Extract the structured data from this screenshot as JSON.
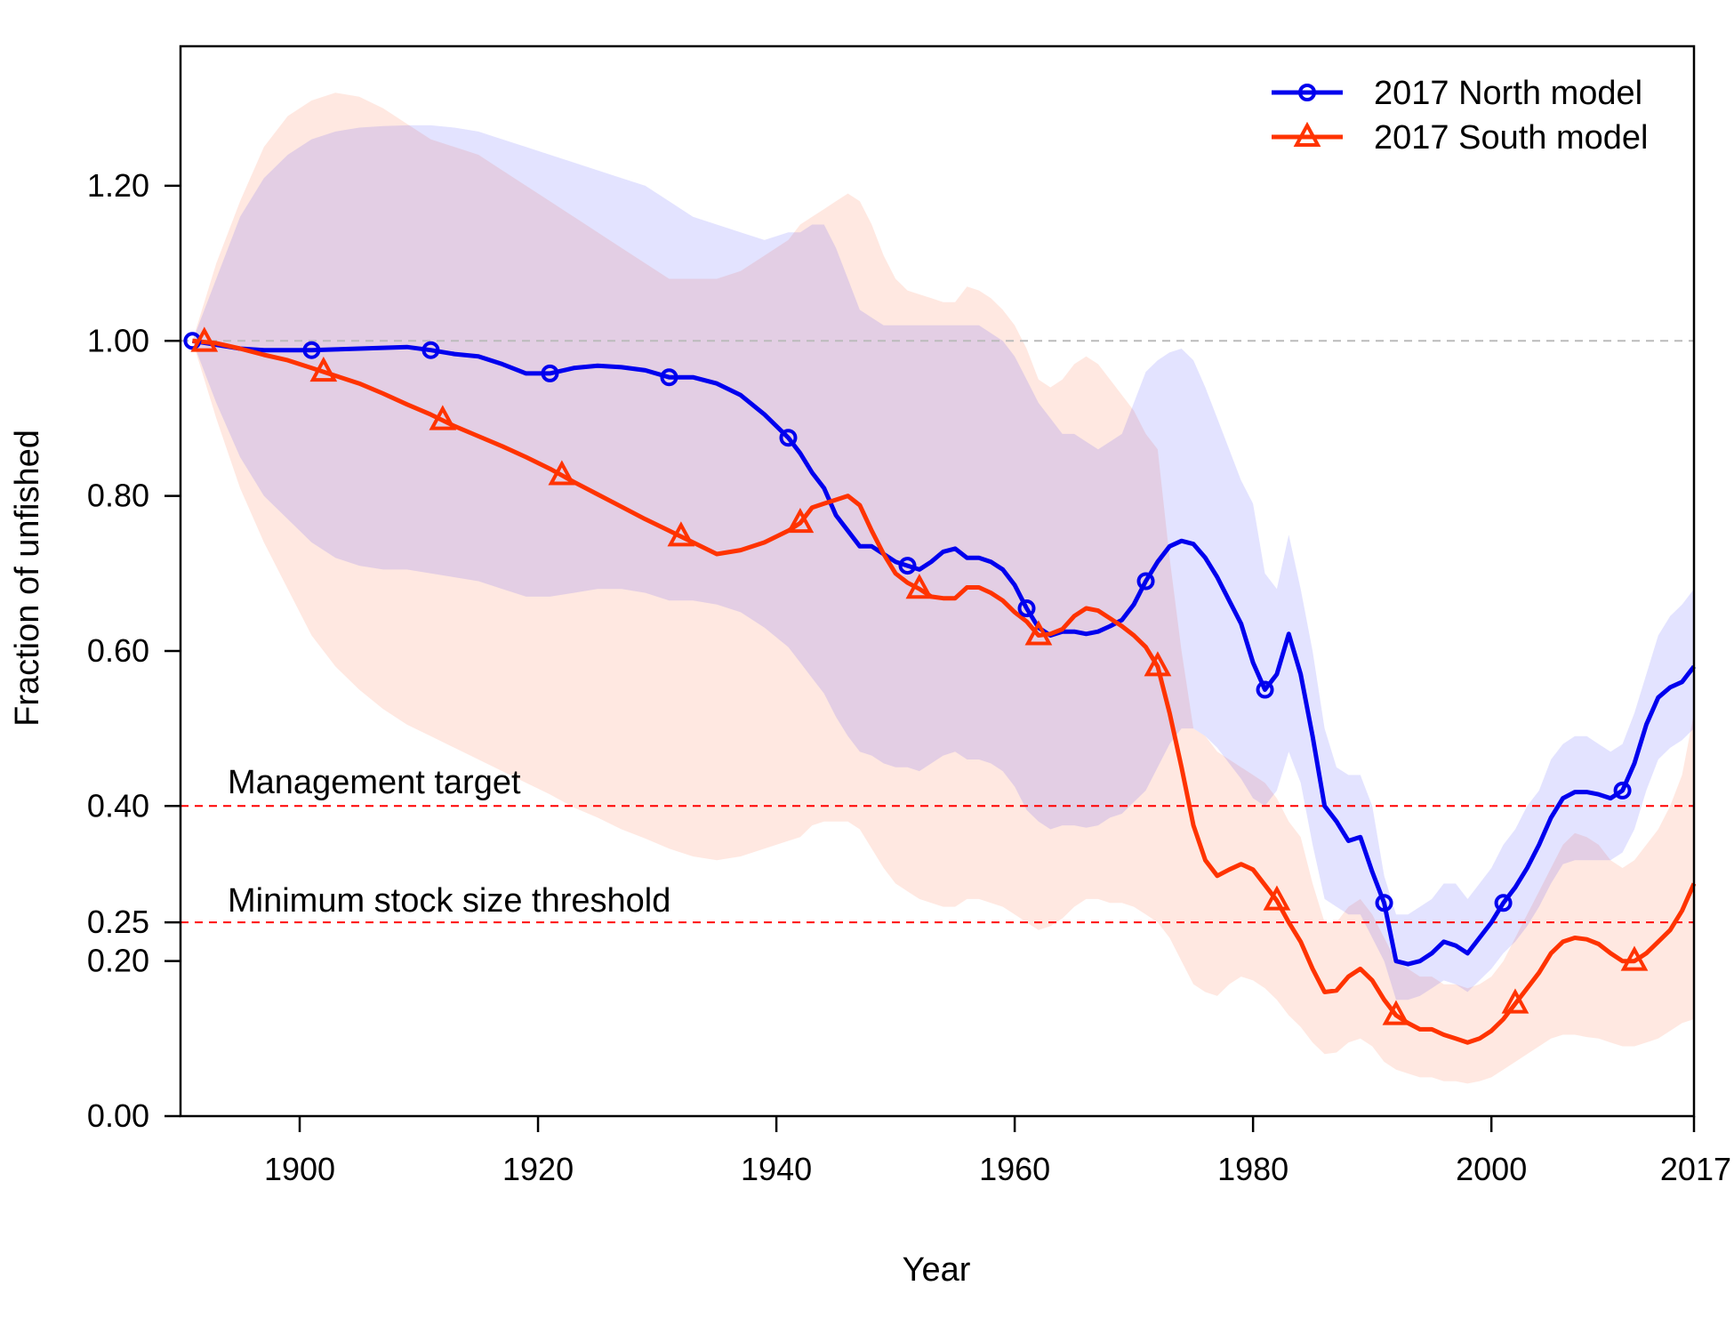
{
  "chart_data": {
    "type": "line",
    "title": "",
    "xlabel": "Year",
    "ylabel": "Fraction of unfished",
    "xlim": [
      1890,
      2017
    ],
    "ylim": [
      0,
      1.38
    ],
    "x_ticks": [
      1900,
      1920,
      1940,
      1960,
      1980,
      2000,
      2017
    ],
    "x_tick_labels": [
      "1900",
      "1920",
      "1940",
      "1960",
      "1980",
      "2000",
      "2017"
    ],
    "y_ticks": [
      0,
      0.2,
      0.25,
      0.4,
      0.6,
      0.8,
      1.0,
      1.2
    ],
    "y_tick_labels": [
      "0.00",
      "0.20",
      "0.25",
      "0.40",
      "0.60",
      "0.80",
      "1.00",
      "1.20"
    ],
    "grid": false,
    "legend_position": "top-right",
    "reference_lines": [
      {
        "y": 1.0,
        "style": "dashed",
        "color": "#bbbbbb",
        "label": ""
      },
      {
        "y": 0.4,
        "style": "dashed",
        "color": "#ff0000",
        "label": "Management target"
      },
      {
        "y": 0.25,
        "style": "dashed",
        "color": "#ff0000",
        "label": "Minimum stock size threshold"
      }
    ],
    "series": [
      {
        "name": "2017 North model",
        "color": "#0000ee",
        "band_color": "#0000ff",
        "marker": "circle",
        "marker_x": [
          1891,
          1901,
          1911,
          1921,
          1931,
          1941,
          1951,
          1961,
          1971,
          1981,
          1991,
          2001,
          2011
        ],
        "x": [
          1891,
          1893,
          1895,
          1897,
          1899,
          1901,
          1903,
          1905,
          1907,
          1909,
          1911,
          1913,
          1915,
          1917,
          1919,
          1921,
          1923,
          1925,
          1927,
          1929,
          1931,
          1933,
          1935,
          1937,
          1939,
          1941,
          1942,
          1943,
          1944,
          1945,
          1946,
          1947,
          1948,
          1949,
          1950,
          1951,
          1952,
          1953,
          1954,
          1955,
          1956,
          1957,
          1958,
          1959,
          1960,
          1961,
          1962,
          1963,
          1964,
          1965,
          1966,
          1967,
          1968,
          1969,
          1970,
          1971,
          1972,
          1973,
          1974,
          1975,
          1976,
          1977,
          1978,
          1979,
          1980,
          1981,
          1982,
          1983,
          1984,
          1985,
          1986,
          1987,
          1988,
          1989,
          1990,
          1991,
          1992,
          1993,
          1994,
          1995,
          1996,
          1997,
          1998,
          1999,
          2000,
          2001,
          2002,
          2003,
          2004,
          2005,
          2006,
          2007,
          2008,
          2009,
          2010,
          2011,
          2012,
          2013,
          2014,
          2015,
          2016,
          2017
        ],
        "y": [
          1.0,
          0.995,
          0.99,
          0.988,
          0.988,
          0.988,
          0.989,
          0.99,
          0.991,
          0.992,
          0.988,
          0.983,
          0.98,
          0.97,
          0.958,
          0.958,
          0.965,
          0.968,
          0.966,
          0.962,
          0.953,
          0.953,
          0.945,
          0.93,
          0.905,
          0.875,
          0.855,
          0.83,
          0.81,
          0.775,
          0.755,
          0.735,
          0.735,
          0.725,
          0.715,
          0.71,
          0.705,
          0.715,
          0.728,
          0.732,
          0.72,
          0.72,
          0.715,
          0.705,
          0.685,
          0.655,
          0.63,
          0.62,
          0.625,
          0.625,
          0.622,
          0.625,
          0.632,
          0.64,
          0.66,
          0.69,
          0.715,
          0.735,
          0.742,
          0.738,
          0.72,
          0.695,
          0.665,
          0.635,
          0.585,
          0.55,
          0.57,
          0.622,
          0.57,
          0.49,
          0.4,
          0.38,
          0.355,
          0.36,
          0.315,
          0.275,
          0.2,
          0.196,
          0.2,
          0.21,
          0.225,
          0.22,
          0.21,
          0.23,
          0.25,
          0.275,
          0.295,
          0.32,
          0.35,
          0.385,
          0.41,
          0.418,
          0.418,
          0.415,
          0.41,
          0.42,
          0.455,
          0.505,
          0.54,
          0.553,
          0.56,
          0.58
        ],
        "band_upper": [
          1.0,
          1.08,
          1.16,
          1.21,
          1.24,
          1.26,
          1.27,
          1.275,
          1.277,
          1.278,
          1.278,
          1.275,
          1.27,
          1.26,
          1.25,
          1.24,
          1.23,
          1.22,
          1.21,
          1.2,
          1.18,
          1.16,
          1.15,
          1.14,
          1.13,
          1.14,
          1.14,
          1.15,
          1.15,
          1.12,
          1.08,
          1.04,
          1.03,
          1.02,
          1.02,
          1.02,
          1.02,
          1.02,
          1.02,
          1.02,
          1.02,
          1.02,
          1.01,
          1.0,
          0.98,
          0.95,
          0.92,
          0.9,
          0.88,
          0.88,
          0.87,
          0.86,
          0.87,
          0.88,
          0.92,
          0.96,
          0.975,
          0.985,
          0.99,
          0.975,
          0.94,
          0.9,
          0.86,
          0.82,
          0.79,
          0.7,
          0.68,
          0.75,
          0.68,
          0.6,
          0.5,
          0.45,
          0.44,
          0.44,
          0.4,
          0.31,
          0.26,
          0.26,
          0.27,
          0.28,
          0.3,
          0.3,
          0.28,
          0.3,
          0.32,
          0.35,
          0.37,
          0.4,
          0.42,
          0.46,
          0.48,
          0.49,
          0.49,
          0.48,
          0.47,
          0.48,
          0.52,
          0.57,
          0.62,
          0.645,
          0.66,
          0.68
        ],
        "band_lower": [
          1.0,
          0.92,
          0.85,
          0.8,
          0.77,
          0.74,
          0.72,
          0.71,
          0.705,
          0.705,
          0.7,
          0.695,
          0.69,
          0.68,
          0.67,
          0.67,
          0.675,
          0.68,
          0.68,
          0.675,
          0.665,
          0.665,
          0.66,
          0.65,
          0.63,
          0.605,
          0.585,
          0.565,
          0.545,
          0.515,
          0.49,
          0.47,
          0.465,
          0.455,
          0.45,
          0.45,
          0.445,
          0.455,
          0.465,
          0.47,
          0.46,
          0.46,
          0.455,
          0.445,
          0.425,
          0.395,
          0.38,
          0.37,
          0.375,
          0.375,
          0.372,
          0.375,
          0.385,
          0.39,
          0.405,
          0.42,
          0.45,
          0.48,
          0.5,
          0.5,
          0.49,
          0.475,
          0.455,
          0.435,
          0.41,
          0.4,
          0.42,
          0.47,
          0.43,
          0.35,
          0.28,
          0.27,
          0.26,
          0.26,
          0.23,
          0.2,
          0.15,
          0.15,
          0.155,
          0.165,
          0.175,
          0.17,
          0.16,
          0.175,
          0.19,
          0.21,
          0.225,
          0.245,
          0.27,
          0.3,
          0.325,
          0.33,
          0.33,
          0.33,
          0.33,
          0.34,
          0.37,
          0.42,
          0.46,
          0.475,
          0.485,
          0.5
        ]
      },
      {
        "name": "2017 South model",
        "color": "#ff3300",
        "band_color": "#ff6633",
        "marker": "triangle",
        "marker_x": [
          1892,
          1902,
          1912,
          1922,
          1932,
          1942,
          1952,
          1962,
          1972,
          1982,
          1992,
          2002,
          2012
        ],
        "x": [
          1891,
          1893,
          1895,
          1897,
          1899,
          1901,
          1903,
          1905,
          1907,
          1909,
          1911,
          1913,
          1915,
          1917,
          1919,
          1921,
          1923,
          1925,
          1927,
          1929,
          1931,
          1933,
          1935,
          1937,
          1939,
          1941,
          1942,
          1943,
          1944,
          1945,
          1946,
          1947,
          1948,
          1949,
          1950,
          1951,
          1952,
          1953,
          1954,
          1955,
          1956,
          1957,
          1958,
          1959,
          1960,
          1961,
          1962,
          1963,
          1964,
          1965,
          1966,
          1967,
          1968,
          1969,
          1970,
          1971,
          1972,
          1973,
          1974,
          1975,
          1976,
          1977,
          1978,
          1979,
          1980,
          1981,
          1982,
          1983,
          1984,
          1985,
          1986,
          1987,
          1988,
          1989,
          1990,
          1991,
          1992,
          1993,
          1994,
          1995,
          1996,
          1997,
          1998,
          1999,
          2000,
          2001,
          2002,
          2003,
          2004,
          2005,
          2006,
          2007,
          2008,
          2009,
          2010,
          2011,
          2012,
          2013,
          2014,
          2015,
          2016,
          2017
        ],
        "y": [
          1.0,
          0.997,
          0.99,
          0.982,
          0.975,
          0.965,
          0.955,
          0.945,
          0.932,
          0.918,
          0.905,
          0.89,
          0.877,
          0.864,
          0.85,
          0.835,
          0.818,
          0.802,
          0.786,
          0.77,
          0.755,
          0.74,
          0.725,
          0.73,
          0.74,
          0.755,
          0.765,
          0.785,
          0.79,
          0.795,
          0.8,
          0.788,
          0.755,
          0.725,
          0.7,
          0.688,
          0.68,
          0.67,
          0.668,
          0.668,
          0.682,
          0.682,
          0.675,
          0.665,
          0.65,
          0.638,
          0.62,
          0.622,
          0.628,
          0.645,
          0.655,
          0.652,
          0.642,
          0.632,
          0.62,
          0.605,
          0.58,
          0.52,
          0.45,
          0.375,
          0.33,
          0.31,
          0.318,
          0.325,
          0.318,
          0.298,
          0.278,
          0.25,
          0.225,
          0.19,
          0.16,
          0.162,
          0.18,
          0.19,
          0.175,
          0.15,
          0.13,
          0.12,
          0.112,
          0.112,
          0.105,
          0.1,
          0.095,
          0.1,
          0.11,
          0.125,
          0.145,
          0.165,
          0.185,
          0.21,
          0.225,
          0.23,
          0.228,
          0.222,
          0.21,
          0.2,
          0.2,
          0.21,
          0.225,
          0.24,
          0.265,
          0.3
        ],
        "band_upper": [
          1.0,
          1.1,
          1.18,
          1.25,
          1.29,
          1.31,
          1.32,
          1.315,
          1.3,
          1.28,
          1.26,
          1.25,
          1.24,
          1.22,
          1.2,
          1.18,
          1.16,
          1.14,
          1.12,
          1.1,
          1.08,
          1.08,
          1.08,
          1.09,
          1.11,
          1.13,
          1.15,
          1.16,
          1.17,
          1.18,
          1.19,
          1.18,
          1.15,
          1.11,
          1.08,
          1.065,
          1.06,
          1.055,
          1.05,
          1.05,
          1.07,
          1.065,
          1.055,
          1.04,
          1.02,
          0.99,
          0.95,
          0.94,
          0.95,
          0.97,
          0.98,
          0.97,
          0.95,
          0.93,
          0.91,
          0.88,
          0.86,
          0.72,
          0.6,
          0.5,
          0.49,
          0.47,
          0.46,
          0.45,
          0.44,
          0.43,
          0.41,
          0.38,
          0.36,
          0.3,
          0.25,
          0.25,
          0.27,
          0.28,
          0.26,
          0.23,
          0.2,
          0.19,
          0.18,
          0.18,
          0.17,
          0.17,
          0.165,
          0.17,
          0.18,
          0.2,
          0.23,
          0.26,
          0.29,
          0.32,
          0.35,
          0.365,
          0.36,
          0.35,
          0.33,
          0.32,
          0.33,
          0.35,
          0.37,
          0.4,
          0.44,
          0.52
        ],
        "band_lower": [
          1.0,
          0.9,
          0.81,
          0.74,
          0.68,
          0.62,
          0.58,
          0.55,
          0.525,
          0.505,
          0.49,
          0.475,
          0.46,
          0.445,
          0.43,
          0.415,
          0.398,
          0.385,
          0.37,
          0.358,
          0.345,
          0.335,
          0.33,
          0.335,
          0.345,
          0.355,
          0.36,
          0.375,
          0.38,
          0.38,
          0.38,
          0.37,
          0.345,
          0.32,
          0.3,
          0.29,
          0.28,
          0.275,
          0.27,
          0.27,
          0.28,
          0.28,
          0.275,
          0.27,
          0.26,
          0.25,
          0.24,
          0.245,
          0.255,
          0.27,
          0.28,
          0.28,
          0.275,
          0.275,
          0.27,
          0.26,
          0.25,
          0.23,
          0.2,
          0.17,
          0.16,
          0.155,
          0.17,
          0.18,
          0.175,
          0.165,
          0.15,
          0.13,
          0.115,
          0.095,
          0.08,
          0.082,
          0.095,
          0.1,
          0.09,
          0.07,
          0.06,
          0.055,
          0.05,
          0.05,
          0.045,
          0.045,
          0.042,
          0.045,
          0.05,
          0.06,
          0.07,
          0.08,
          0.09,
          0.1,
          0.105,
          0.105,
          0.102,
          0.1,
          0.095,
          0.09,
          0.09,
          0.095,
          0.1,
          0.11,
          0.12,
          0.125
        ]
      }
    ]
  }
}
